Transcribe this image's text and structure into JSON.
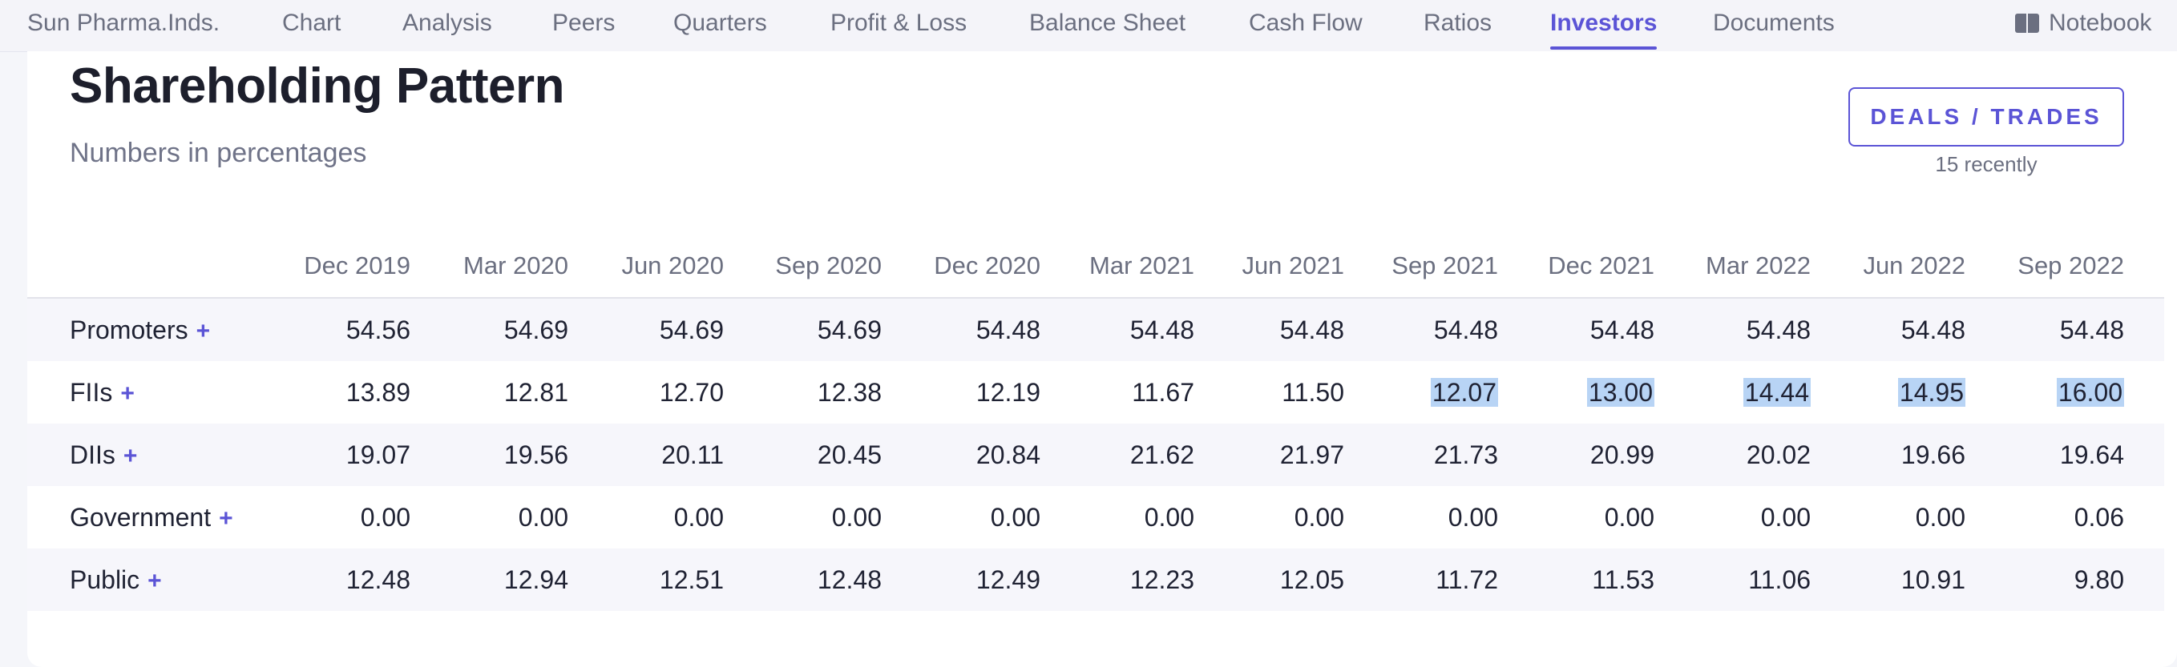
{
  "nav": {
    "company": "Sun Pharma.Inds.",
    "items": [
      "Chart",
      "Analysis",
      "Peers",
      "Quarters",
      "Profit & Loss",
      "Balance Sheet",
      "Cash Flow",
      "Ratios",
      "Investors",
      "Documents"
    ],
    "active": "Investors",
    "notebook": "Notebook"
  },
  "section": {
    "title": "Shareholding Pattern",
    "subtitle": "Numbers in percentages",
    "deals_button": "DEALS / TRADES",
    "deals_sub": "15 recently"
  },
  "table": {
    "columns": [
      "Dec 2019",
      "Mar 2020",
      "Jun 2020",
      "Sep 2020",
      "Dec 2020",
      "Mar 2021",
      "Jun 2021",
      "Sep 2021",
      "Dec 2021",
      "Mar 2022",
      "Jun 2022",
      "Sep 2022"
    ],
    "rows": [
      {
        "label": "Promoters",
        "values": [
          "54.56",
          "54.69",
          "54.69",
          "54.69",
          "54.48",
          "54.48",
          "54.48",
          "54.48",
          "54.48",
          "54.48",
          "54.48",
          "54.48"
        ]
      },
      {
        "label": "FIIs",
        "values": [
          "13.89",
          "12.81",
          "12.70",
          "12.38",
          "12.19",
          "11.67",
          "11.50",
          "12.07",
          "13.00",
          "14.44",
          "14.95",
          "16.00"
        ]
      },
      {
        "label": "DIIs",
        "values": [
          "19.07",
          "19.56",
          "20.11",
          "20.45",
          "20.84",
          "21.62",
          "21.97",
          "21.73",
          "20.99",
          "20.02",
          "19.66",
          "19.64"
        ]
      },
      {
        "label": "Government",
        "values": [
          "0.00",
          "0.00",
          "0.00",
          "0.00",
          "0.00",
          "0.00",
          "0.00",
          "0.00",
          "0.00",
          "0.00",
          "0.00",
          "0.06"
        ]
      },
      {
        "label": "Public",
        "values": [
          "12.48",
          "12.94",
          "12.51",
          "12.48",
          "12.49",
          "12.23",
          "12.05",
          "11.72",
          "11.53",
          "11.06",
          "10.91",
          "9.80"
        ]
      }
    ],
    "expand_symbol": "+"
  },
  "colors": {
    "accent": "#5b54d6",
    "selection": "#b8d4f5"
  }
}
